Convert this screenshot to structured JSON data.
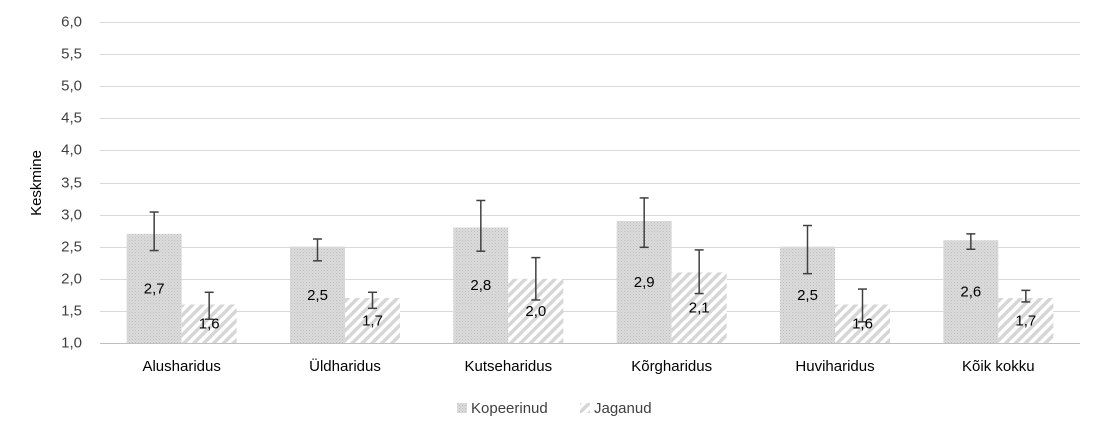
{
  "chart_data": {
    "type": "bar",
    "ylabel": "Keskmine",
    "xlabel": "",
    "ylim": [
      1.0,
      6.0
    ],
    "ytick_step": 0.5,
    "yticks": [
      "1,0",
      "1,5",
      "2,0",
      "2,5",
      "3,0",
      "3,5",
      "4,0",
      "4,5",
      "5,0",
      "5,5",
      "6,0"
    ],
    "grid": true,
    "legend_position": "bottom",
    "categories": [
      "Alusharidus",
      "Üldharidus",
      "Kutseharidus",
      "Kõrgharidus",
      "Huviharidus",
      "Kõik kokku"
    ],
    "series": [
      {
        "name": "Kopeerinud",
        "pattern": "dotted-gray",
        "color": "#d9d9d9",
        "values": [
          2.7,
          2.5,
          2.8,
          2.9,
          2.5,
          2.6
        ],
        "labels": [
          "2,7",
          "2,5",
          "2,8",
          "2,9",
          "2,5",
          "2,6"
        ],
        "error_low": [
          2.44,
          2.28,
          2.43,
          2.49,
          2.08,
          2.46
        ],
        "error_high": [
          3.04,
          2.62,
          3.22,
          3.26,
          2.83,
          2.7
        ]
      },
      {
        "name": "Jaganud",
        "pattern": "diagonal-stripes",
        "color": "#d9d9d9",
        "values": [
          1.6,
          1.7,
          2.0,
          2.1,
          1.6,
          1.7
        ],
        "labels": [
          "1,6",
          "1,7",
          "2,0",
          "2,1",
          "1,6",
          "1,7"
        ],
        "error_low": [
          1.37,
          1.54,
          1.67,
          1.77,
          1.33,
          1.64
        ],
        "error_high": [
          1.79,
          1.79,
          2.33,
          2.45,
          1.84,
          1.82
        ]
      }
    ]
  }
}
